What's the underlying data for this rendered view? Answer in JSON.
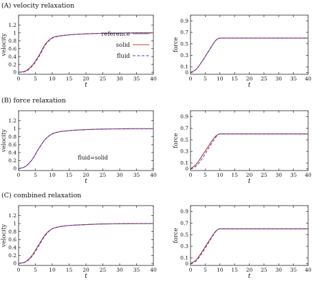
{
  "sections": [
    {
      "label": "(A)   velocity relaxation"
    },
    {
      "label": "(B)   force relaxation"
    },
    {
      "label": "(C)   combined relaxation"
    }
  ],
  "legend": {
    "entries": [
      {
        "name": "reference",
        "color": "#777777",
        "dash": "solid"
      },
      {
        "name": "solid",
        "color": "#e03030",
        "dash": "solid"
      },
      {
        "name": "fluid",
        "color": "#3344cc",
        "dash": "dashed"
      }
    ]
  },
  "annotation": {
    "text": "fluid=solid"
  },
  "chart_data": [
    {
      "id": "A-velocity",
      "type": "line",
      "section": "A",
      "xlabel": "t",
      "ylabel": "velocity",
      "xlim": [
        0,
        40
      ],
      "ylim": [
        -0.05,
        1.45
      ],
      "xticks": [
        0,
        5,
        10,
        15,
        20,
        25,
        30,
        35,
        40
      ],
      "yticks": [
        0,
        0.2,
        0.4,
        0.6,
        0.8,
        1.0,
        1.2
      ],
      "ytick_labels": [
        "0",
        "0.2",
        "0.4",
        "0.6",
        "0.8",
        "1",
        "1.2"
      ],
      "legend": "inside-right",
      "series": [
        {
          "name": "reference",
          "x": [
            0,
            2,
            4,
            6,
            8,
            10,
            12,
            15,
            20,
            25,
            30,
            35,
            40
          ],
          "y": [
            0,
            0.03,
            0.17,
            0.42,
            0.72,
            0.875,
            0.92,
            0.95,
            0.975,
            0.99,
            0.995,
            1.0,
            1.0
          ]
        },
        {
          "name": "solid",
          "x": [
            0,
            2,
            4,
            6,
            8,
            10,
            12,
            15,
            20,
            25,
            30,
            35,
            40
          ],
          "y": [
            0,
            0.03,
            0.17,
            0.42,
            0.72,
            0.875,
            0.92,
            0.95,
            0.975,
            0.99,
            0.995,
            1.0,
            1.0
          ]
        },
        {
          "name": "fluid",
          "x": [
            0,
            2,
            4,
            6,
            8,
            10,
            12,
            15,
            20,
            25,
            30,
            35,
            40
          ],
          "y": [
            0,
            0.02,
            0.15,
            0.39,
            0.7,
            0.865,
            0.915,
            0.95,
            0.975,
            0.99,
            0.995,
            1.0,
            1.0
          ]
        }
      ]
    },
    {
      "id": "A-force",
      "type": "line",
      "section": "A",
      "xlabel": "t",
      "ylabel": "force",
      "xlim": [
        0,
        40
      ],
      "ylim": [
        -0.03,
        1.0
      ],
      "xticks": [
        0,
        5,
        10,
        15,
        20,
        25,
        30,
        35,
        40
      ],
      "yticks": [
        0,
        0.1,
        0.3,
        0.5,
        0.7,
        0.9
      ],
      "ytick_labels": [
        "0",
        "0.1",
        "0.3",
        "0.5",
        "0.7",
        "0.9"
      ],
      "series": [
        {
          "name": "reference",
          "x": [
            0,
            2,
            4,
            6,
            8,
            9,
            10,
            15,
            20,
            25,
            30,
            35,
            40
          ],
          "y": [
            0,
            0.06,
            0.2,
            0.36,
            0.52,
            0.58,
            0.6,
            0.6,
            0.6,
            0.6,
            0.6,
            0.6,
            0.6
          ]
        },
        {
          "name": "solid",
          "x": [
            0,
            2,
            4,
            6,
            8,
            9,
            10,
            15,
            20,
            25,
            30,
            35,
            40
          ],
          "y": [
            0,
            0.06,
            0.2,
            0.36,
            0.52,
            0.58,
            0.6,
            0.6,
            0.6,
            0.6,
            0.6,
            0.6,
            0.6
          ]
        },
        {
          "name": "fluid",
          "x": [
            0,
            2,
            4,
            6,
            8,
            9,
            10,
            15,
            20,
            25,
            30,
            35,
            40
          ],
          "y": [
            0,
            0.06,
            0.2,
            0.36,
            0.52,
            0.58,
            0.6,
            0.6,
            0.6,
            0.6,
            0.6,
            0.6,
            0.6
          ]
        }
      ]
    },
    {
      "id": "B-velocity",
      "type": "line",
      "section": "B",
      "xlabel": "t",
      "ylabel": "velocity",
      "xlim": [
        0,
        40
      ],
      "ylim": [
        -0.05,
        1.45
      ],
      "xticks": [
        0,
        5,
        10,
        15,
        20,
        25,
        30,
        35,
        40
      ],
      "yticks": [
        0,
        0.2,
        0.4,
        0.6,
        0.8,
        1.0,
        1.2
      ],
      "ytick_labels": [
        "0",
        "0.2",
        "0.4",
        "0.6",
        "0.8",
        "1",
        "1.2"
      ],
      "series": [
        {
          "name": "reference",
          "x": [
            0,
            2,
            4,
            6,
            8,
            10,
            12,
            15,
            20,
            25,
            30,
            35,
            40
          ],
          "y": [
            0,
            0.05,
            0.22,
            0.5,
            0.74,
            0.87,
            0.92,
            0.95,
            0.975,
            0.99,
            0.995,
            1.0,
            1.0
          ]
        },
        {
          "name": "solid",
          "x": [
            0,
            2,
            4,
            6,
            8,
            10,
            12,
            15,
            20,
            25,
            30,
            35,
            40
          ],
          "y": [
            0,
            0.05,
            0.22,
            0.5,
            0.74,
            0.87,
            0.92,
            0.95,
            0.975,
            0.99,
            0.995,
            1.0,
            1.0
          ]
        },
        {
          "name": "fluid",
          "x": [
            0,
            2,
            4,
            6,
            8,
            10,
            12,
            15,
            20,
            25,
            30,
            35,
            40
          ],
          "y": [
            0,
            0.05,
            0.22,
            0.5,
            0.74,
            0.87,
            0.92,
            0.95,
            0.975,
            0.99,
            0.995,
            1.0,
            1.0
          ]
        }
      ]
    },
    {
      "id": "B-force",
      "type": "line",
      "section": "B",
      "xlabel": "t",
      "ylabel": "force",
      "xlim": [
        0,
        40
      ],
      "ylim": [
        -0.03,
        1.0
      ],
      "xticks": [
        0,
        5,
        10,
        15,
        20,
        25,
        30,
        35,
        40
      ],
      "yticks": [
        0,
        0.1,
        0.3,
        0.5,
        0.7,
        0.9
      ],
      "ytick_labels": [
        "0",
        "0.1",
        "0.3",
        "0.5",
        "0.7",
        "0.9"
      ],
      "series": [
        {
          "name": "reference",
          "x": [
            0,
            2,
            4,
            6,
            8,
            9,
            10,
            15,
            20,
            25,
            30,
            35,
            40
          ],
          "y": [
            0,
            0.08,
            0.23,
            0.38,
            0.53,
            0.58,
            0.6,
            0.6,
            0.6,
            0.6,
            0.6,
            0.6,
            0.6
          ]
        },
        {
          "name": "solid",
          "x": [
            0,
            2,
            4,
            6,
            8,
            9,
            10,
            15,
            20,
            25,
            30,
            35,
            40
          ],
          "y": [
            0,
            0.08,
            0.23,
            0.38,
            0.53,
            0.58,
            0.6,
            0.6,
            0.6,
            0.6,
            0.6,
            0.6,
            0.6
          ]
        },
        {
          "name": "fluid",
          "x": [
            0,
            2,
            4,
            6,
            8,
            9,
            10,
            15,
            20,
            25,
            30,
            35,
            40
          ],
          "y": [
            0,
            0.05,
            0.18,
            0.34,
            0.5,
            0.57,
            0.6,
            0.6,
            0.6,
            0.6,
            0.6,
            0.6,
            0.6
          ]
        }
      ]
    },
    {
      "id": "C-velocity",
      "type": "line",
      "section": "C",
      "xlabel": "t",
      "ylabel": "velocity",
      "xlim": [
        0,
        40
      ],
      "ylim": [
        -0.05,
        1.45
      ],
      "xticks": [
        0,
        5,
        10,
        15,
        20,
        25,
        30,
        35,
        40
      ],
      "yticks": [
        0,
        0.2,
        0.4,
        0.6,
        0.8,
        1.0,
        1.2
      ],
      "ytick_labels": [
        "0",
        "0.2",
        "0.4",
        "0.6",
        "0.8",
        "1",
        "1.2"
      ],
      "series": [
        {
          "name": "reference",
          "x": [
            0,
            2,
            4,
            6,
            8,
            10,
            12,
            15,
            20,
            25,
            30,
            35,
            40
          ],
          "y": [
            0,
            0.04,
            0.2,
            0.47,
            0.73,
            0.87,
            0.92,
            0.95,
            0.975,
            0.99,
            0.995,
            1.0,
            1.0
          ]
        },
        {
          "name": "solid",
          "x": [
            0,
            2,
            4,
            6,
            8,
            10,
            12,
            15,
            20,
            25,
            30,
            35,
            40
          ],
          "y": [
            0,
            0.04,
            0.2,
            0.47,
            0.73,
            0.87,
            0.92,
            0.95,
            0.975,
            0.99,
            0.995,
            1.0,
            1.0
          ]
        },
        {
          "name": "fluid",
          "x": [
            0,
            2,
            4,
            6,
            8,
            10,
            12,
            15,
            20,
            25,
            30,
            35,
            40
          ],
          "y": [
            0,
            0.03,
            0.18,
            0.44,
            0.71,
            0.865,
            0.915,
            0.95,
            0.975,
            0.99,
            0.995,
            1.0,
            1.0
          ]
        }
      ]
    },
    {
      "id": "C-force",
      "type": "line",
      "section": "C",
      "xlabel": "t",
      "ylabel": "force",
      "xlim": [
        0,
        40
      ],
      "ylim": [
        -0.03,
        1.0
      ],
      "xticks": [
        0,
        5,
        10,
        15,
        20,
        25,
        30,
        35,
        40
      ],
      "yticks": [
        0,
        0.1,
        0.3,
        0.5,
        0.7,
        0.9
      ],
      "ytick_labels": [
        "0",
        "0.1",
        "0.3",
        "0.5",
        "0.7",
        "0.9"
      ],
      "series": [
        {
          "name": "reference",
          "x": [
            0,
            2,
            4,
            6,
            8,
            9,
            10,
            15,
            20,
            25,
            30,
            35,
            40
          ],
          "y": [
            0,
            0.07,
            0.21,
            0.37,
            0.52,
            0.58,
            0.6,
            0.6,
            0.6,
            0.6,
            0.6,
            0.6,
            0.6
          ]
        },
        {
          "name": "solid",
          "x": [
            0,
            2,
            4,
            6,
            8,
            9,
            10,
            15,
            20,
            25,
            30,
            35,
            40
          ],
          "y": [
            0,
            0.07,
            0.21,
            0.37,
            0.52,
            0.58,
            0.6,
            0.6,
            0.6,
            0.6,
            0.6,
            0.6,
            0.6
          ]
        },
        {
          "name": "fluid",
          "x": [
            0,
            2,
            4,
            6,
            8,
            9,
            10,
            15,
            20,
            25,
            30,
            35,
            40
          ],
          "y": [
            0,
            0.05,
            0.19,
            0.35,
            0.51,
            0.575,
            0.6,
            0.6,
            0.6,
            0.6,
            0.6,
            0.6,
            0.6
          ]
        }
      ]
    }
  ]
}
